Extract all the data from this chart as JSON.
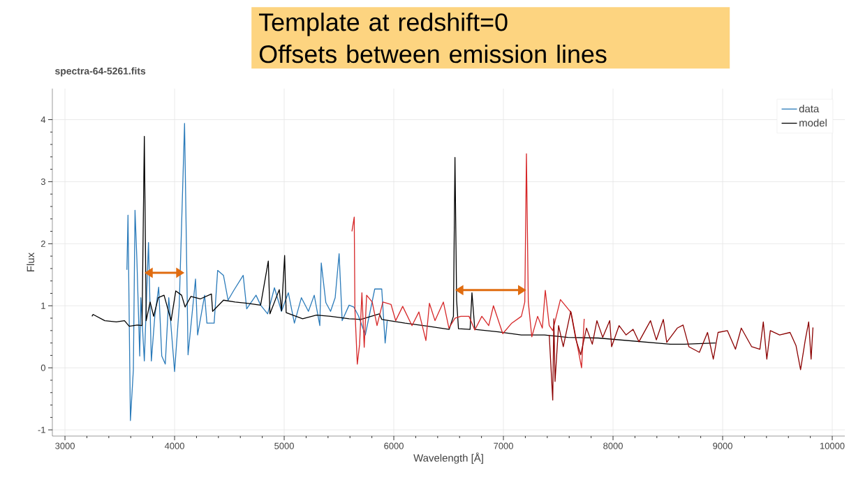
{
  "chart_data": {
    "type": "line",
    "title": "spectra-64-5261.fits",
    "xlabel": "Wavelength [Å]",
    "ylabel": "Flux",
    "annotations": [
      "Template at redshift=0",
      "Offsets between emission lines"
    ],
    "xlim": [
      2885,
      10115
    ],
    "ylim": [
      -1.1,
      4.5
    ],
    "xticks": [
      3000,
      4000,
      5000,
      6000,
      7000,
      8000,
      9000,
      10000
    ],
    "yticks": [
      -1,
      0,
      1,
      2,
      3,
      4
    ],
    "grid": true,
    "legend": "top right",
    "series": [
      {
        "name": "data",
        "color": "#2b7bba",
        "x": [
          3565,
          3575,
          3597,
          3624,
          3639,
          3656,
          3682,
          3692,
          3724,
          3762,
          3788,
          3820,
          3855,
          3883,
          3915,
          3947,
          4000,
          4042,
          4091,
          4123,
          4191,
          4210,
          4274,
          4295,
          4361,
          4393,
          4446,
          4488,
          4541,
          4626,
          4658,
          4743,
          4785,
          4849,
          4911,
          4975,
          5038,
          5093,
          5157,
          5221,
          5274,
          5325,
          5338,
          5380,
          5423,
          5465,
          5501,
          5529,
          5592,
          5635,
          5677,
          5740,
          5826,
          5890,
          5921,
          5940
        ],
        "values": [
          1.58,
          2.46,
          -0.85,
          -0.03,
          2.54,
          1.75,
          0.19,
          1.13,
          0.11,
          2.02,
          0.11,
          0.84,
          1.3,
          0.19,
          0.06,
          1.13,
          -0.06,
          0.98,
          3.94,
          0.21,
          1.43,
          0.53,
          1.17,
          0.72,
          0.72,
          1.57,
          1.49,
          1.09,
          1.25,
          1.49,
          0.95,
          1.17,
          1.01,
          0.87,
          1.29,
          0.91,
          1.21,
          0.72,
          1.13,
          0.91,
          1.17,
          0.68,
          1.69,
          1.05,
          0.91,
          1.13,
          1.84,
          0.76,
          1.01,
          0.98,
          0.84,
          0.53,
          1.27,
          1.27,
          0.4,
          0.76
        ]
      },
      {
        "name": "model",
        "color": "#000000",
        "x": [
          3246,
          3257,
          3363,
          3469,
          3543,
          3586,
          3660,
          3703,
          3724,
          3741,
          3777,
          3809,
          3851,
          3904,
          3968,
          4011,
          4064,
          4096,
          4149,
          4234,
          4336,
          4347,
          4446,
          4552,
          4658,
          4785,
          4855,
          4870,
          4955,
          4976,
          5004,
          5018,
          5168,
          5295,
          5422,
          5592,
          5698,
          5868,
          5890,
          6102,
          6314,
          6505,
          6544,
          6558,
          6573,
          6590,
          6696,
          6713,
          6739,
          6951,
          7163,
          7375,
          7588,
          7864,
          8522,
          8650,
          8935
        ],
        "values": [
          0.83,
          0.86,
          0.76,
          0.74,
          0.76,
          0.67,
          0.69,
          0.68,
          3.73,
          0.76,
          1.06,
          0.83,
          1.13,
          1.17,
          0.76,
          1.24,
          1.17,
          0.98,
          1.15,
          1.11,
          1.19,
          0.91,
          1.09,
          1.06,
          1.04,
          1.01,
          1.72,
          0.87,
          1.26,
          0.92,
          1.81,
          0.89,
          0.79,
          0.85,
          0.83,
          0.79,
          0.78,
          0.87,
          0.78,
          0.72,
          0.67,
          0.62,
          0.83,
          3.39,
          1.09,
          0.63,
          0.62,
          1.21,
          0.62,
          0.58,
          0.53,
          0.53,
          0.49,
          0.48,
          0.38,
          0.38,
          0.4
        ]
      },
      {
        "color": "#d62728",
        "x": [
          5618,
          5639,
          5645,
          5667,
          5688,
          5709,
          5730,
          5752,
          5803,
          5847,
          5900,
          5975,
          6017,
          6081,
          6166,
          6229,
          6293,
          6325,
          6376,
          6452,
          6503,
          6558,
          6611,
          6686,
          6739,
          6803,
          6866,
          6909,
          6994,
          7076,
          7164,
          7195,
          7210,
          7227,
          7259,
          7312,
          7355,
          7382,
          7418,
          7450,
          7520,
          7618,
          7713,
          7737
        ],
        "values": [
          2.2,
          2.43,
          0.95,
          0.06,
          0.38,
          1.21,
          0.33,
          1.17,
          1.06,
          0.68,
          1.06,
          1.02,
          0.76,
          0.99,
          0.68,
          0.9,
          0.44,
          1.04,
          0.76,
          1.06,
          0.64,
          0.8,
          0.83,
          0.83,
          0.61,
          0.83,
          0.68,
          1.0,
          0.55,
          0.72,
          0.83,
          1.06,
          3.45,
          1.06,
          0.5,
          0.83,
          0.64,
          1.25,
          0.68,
          0.6,
          1.1,
          0.89,
          0.0,
          0.79
        ]
      },
      {
        "color": "#8b0000",
        "x": [
          7418,
          7450,
          7460,
          7471,
          7503,
          7546,
          7614,
          7662,
          7705,
          7758,
          7811,
          7853,
          7906,
          7970,
          7987,
          8055,
          8119,
          8183,
          8236,
          8342,
          8395,
          8459,
          8490,
          8586,
          8639,
          8692,
          8788,
          8862,
          8915,
          8958,
          9043,
          9117,
          9170,
          9265,
          9340,
          9371,
          9403,
          9435,
          9520,
          9615,
          9669,
          9711,
          9754,
          9785,
          9807,
          9824
        ],
        "values": [
          0.53,
          -0.52,
          0.79,
          -0.22,
          0.68,
          0.34,
          0.91,
          0.45,
          0.21,
          0.64,
          0.38,
          0.76,
          0.49,
          0.76,
          0.34,
          0.68,
          0.53,
          0.62,
          0.42,
          0.76,
          0.45,
          0.78,
          0.41,
          0.64,
          0.69,
          0.34,
          0.25,
          0.57,
          0.14,
          0.57,
          0.6,
          0.3,
          0.64,
          0.34,
          0.3,
          0.74,
          0.14,
          0.6,
          0.53,
          0.57,
          0.36,
          -0.03,
          0.45,
          0.74,
          0.14,
          0.65
        ]
      }
    ]
  }
}
